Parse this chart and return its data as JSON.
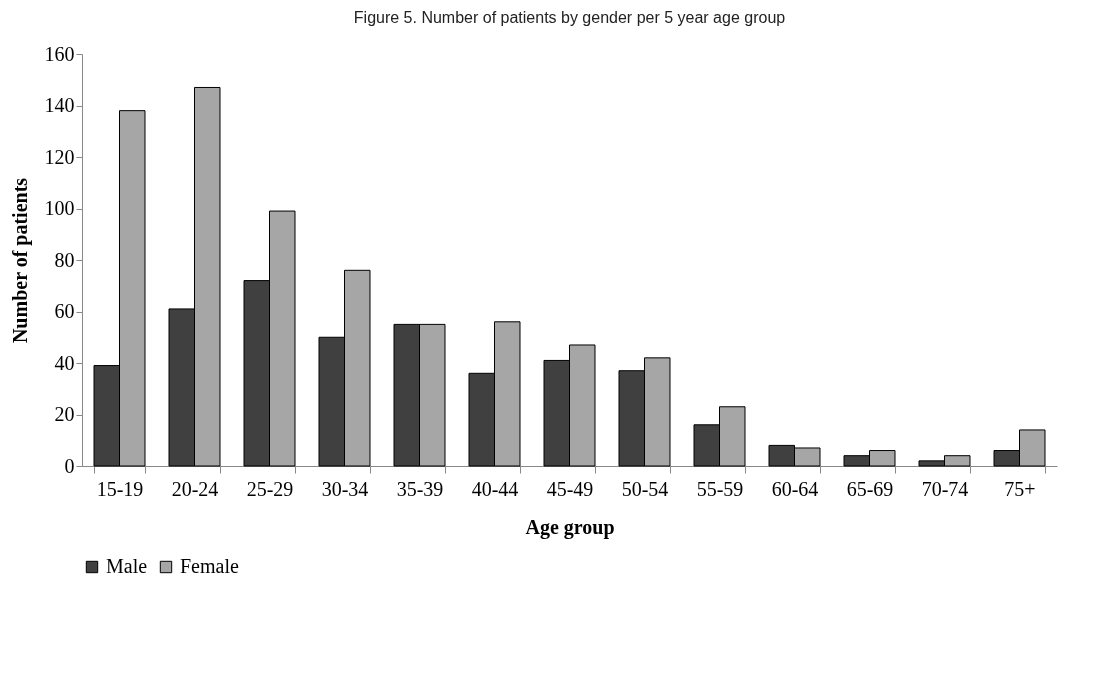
{
  "chart_data": {
    "type": "bar",
    "title": "Figure 5. Number of patients by gender per 5 year age group",
    "xlabel": "Age group",
    "ylabel": "Number of patients",
    "categories": [
      "15-19",
      "20-24",
      "25-29",
      "30-34",
      "35-39",
      "40-44",
      "45-49",
      "50-54",
      "55-59",
      "60-64",
      "65-69",
      "70-74",
      "75+"
    ],
    "series": [
      {
        "name": "Male",
        "color": "#404040",
        "values": [
          39,
          61,
          72,
          50,
          55,
          36,
          41,
          37,
          16,
          8,
          4,
          2,
          6
        ]
      },
      {
        "name": "Female",
        "color": "#a6a6a6",
        "values": [
          138,
          147,
          99,
          76,
          55,
          56,
          47,
          42,
          23,
          7,
          6,
          4,
          14
        ]
      }
    ],
    "ylim": [
      0,
      160
    ],
    "yticks": [
      0,
      20,
      40,
      60,
      80,
      100,
      120,
      140,
      160
    ],
    "legend": "bottom"
  }
}
